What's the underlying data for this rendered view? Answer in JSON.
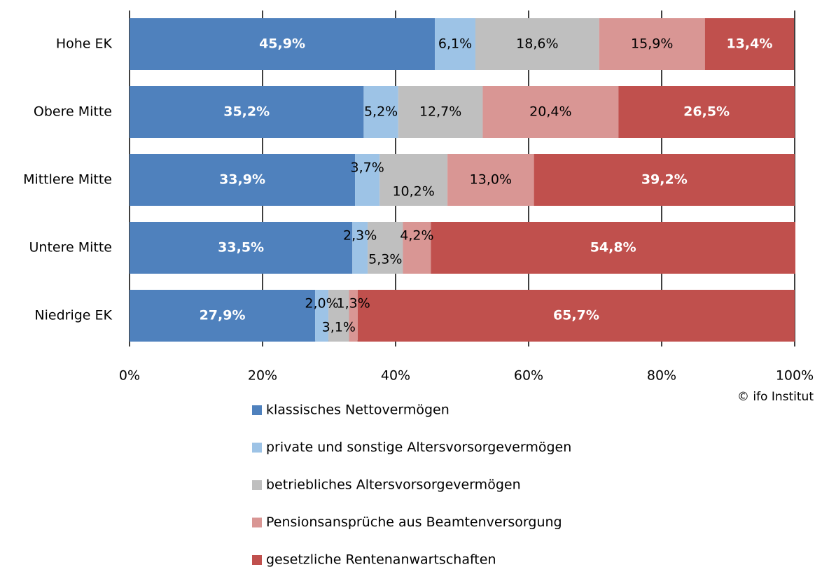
{
  "chart_data": {
    "type": "stacked_bar_horizontal",
    "categories": [
      "Hohe EK",
      "Obere Mitte",
      "Mittlere Mitte",
      "Untere Mitte",
      "Niedrige EK"
    ],
    "series": [
      {
        "name": "klassisches Nettovermögen",
        "color": "#4f81bd",
        "values": [
          45.9,
          35.2,
          33.9,
          33.5,
          27.9
        ],
        "value_labels": [
          "45,9%",
          "35,2%",
          "33,9%",
          "33,5%",
          "27,9%"
        ]
      },
      {
        "name": "private und sonstige Altersvorsorgevermögen",
        "color": "#9dc3e6",
        "values": [
          6.1,
          5.2,
          3.7,
          2.3,
          2.0
        ],
        "value_labels": [
          "6,1%",
          "5,2%",
          "3,7%",
          "2,3%",
          "2,0%"
        ]
      },
      {
        "name": "betriebliches Altersvorsorgevermögen",
        "color": "#bfbfbf",
        "values": [
          18.6,
          12.7,
          10.2,
          5.3,
          3.1
        ],
        "value_labels": [
          "18,6%",
          "12,7%",
          "10,2%",
          "5,3%",
          "3,1%"
        ]
      },
      {
        "name": "Pensionsansprüche aus Beamtenversorgung",
        "color": "#d99694",
        "values": [
          15.9,
          20.4,
          13.0,
          4.2,
          1.3
        ],
        "value_labels": [
          "15,9%",
          "20,4%",
          "13,0%",
          "4,2%",
          "1,3%"
        ]
      },
      {
        "name": "gesetzliche Rentenanwartschaften",
        "color": "#c0504d",
        "values": [
          13.4,
          26.5,
          39.2,
          54.8,
          65.7
        ],
        "value_labels": [
          "13,4%",
          "26,5%",
          "39,2%",
          "54,8%",
          "65,7%"
        ]
      }
    ],
    "xlim": [
      0,
      100
    ],
    "xticks": [
      {
        "value": 0,
        "label": "0%"
      },
      {
        "value": 20,
        "label": "20%"
      },
      {
        "value": 40,
        "label": "40%"
      },
      {
        "value": 60,
        "label": "60%"
      },
      {
        "value": 80,
        "label": "80%"
      },
      {
        "value": 100,
        "label": "100%"
      }
    ],
    "grid": true,
    "source": "© ifo Institut"
  }
}
